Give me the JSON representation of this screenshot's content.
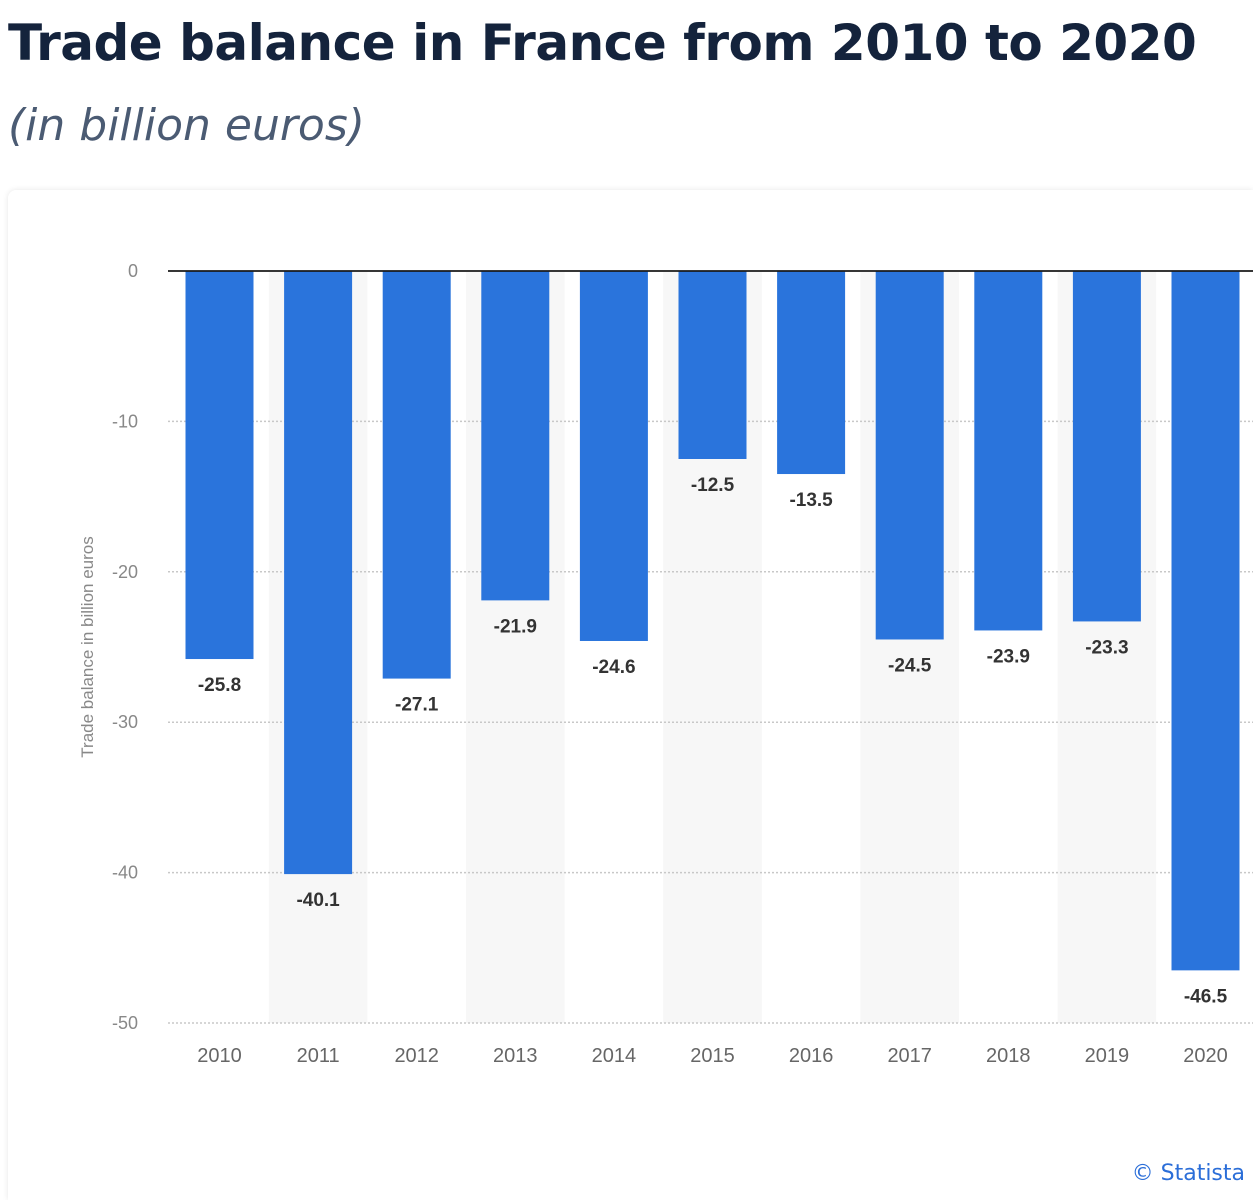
{
  "header": {
    "title": "Trade balance in France from 2010 to 2020",
    "subtitle": "(in billion euros)"
  },
  "footer": {
    "credit": "© Statista"
  },
  "colors": {
    "bar": "#2a74dc",
    "band": "#f7f7f7",
    "grid": "#c8c8c8",
    "axis_text": "#666666",
    "label_text": "#333333"
  },
  "chart_data": {
    "type": "bar",
    "title": "Trade balance in France from 2010 to 2020",
    "subtitle": "(in billion euros)",
    "ylabel": "Trade balance in billion euros",
    "xlabel": "",
    "categories": [
      "2010",
      "2011",
      "2012",
      "2013",
      "2014",
      "2015",
      "2016",
      "2017",
      "2018",
      "2019",
      "2020"
    ],
    "values": [
      -25.8,
      -40.1,
      -27.1,
      -21.9,
      -24.6,
      -12.5,
      -13.5,
      -24.5,
      -23.9,
      -23.3,
      -46.5
    ],
    "value_labels": [
      "-25.8",
      "-40.1",
      "-27.1",
      "-21.9",
      "-24.6",
      "-12.5",
      "-13.5",
      "-24.5",
      "-23.9",
      "-23.3",
      "-46.5"
    ],
    "ylim": [
      -50,
      0
    ],
    "yticks": [
      0,
      -10,
      -20,
      -30,
      -40,
      -50
    ],
    "ytick_labels": [
      "0",
      "-10",
      "-20",
      "-30",
      "-40",
      "-50"
    ],
    "grid": true,
    "legend": "none"
  }
}
